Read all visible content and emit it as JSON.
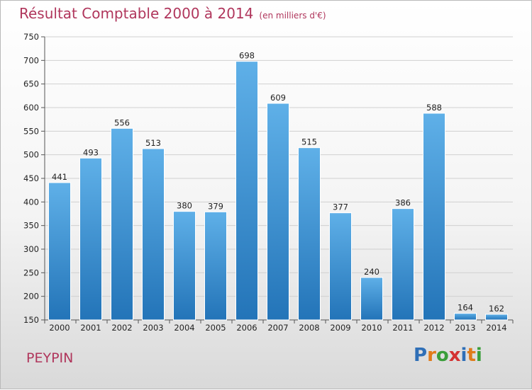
{
  "header": {
    "title": "Résultat Comptable 2000 à 2014",
    "unit": "(en milliers d'€)"
  },
  "footer": {
    "place": "PEYPIN",
    "logo_text": "Proxiti"
  },
  "colors": {
    "title": "#b0365c",
    "bar_top": "#5fb0e8",
    "bar_bottom": "#2374b8",
    "grid": "#d0d0d0"
  },
  "chart_data": {
    "type": "bar",
    "title": "Résultat Comptable 2000 à 2014",
    "xlabel": "",
    "ylabel": "",
    "categories": [
      "2000",
      "2001",
      "2002",
      "2003",
      "2004",
      "2005",
      "2006",
      "2007",
      "2008",
      "2009",
      "2010",
      "2011",
      "2012",
      "2013",
      "2014"
    ],
    "values": [
      441,
      493,
      556,
      513,
      380,
      379,
      698,
      609,
      515,
      377,
      240,
      386,
      588,
      164,
      162
    ],
    "ylim": [
      150,
      750
    ],
    "yticks": [
      150,
      200,
      250,
      300,
      350,
      400,
      450,
      500,
      550,
      600,
      650,
      700,
      750
    ],
    "grid": true,
    "legend": "none"
  }
}
